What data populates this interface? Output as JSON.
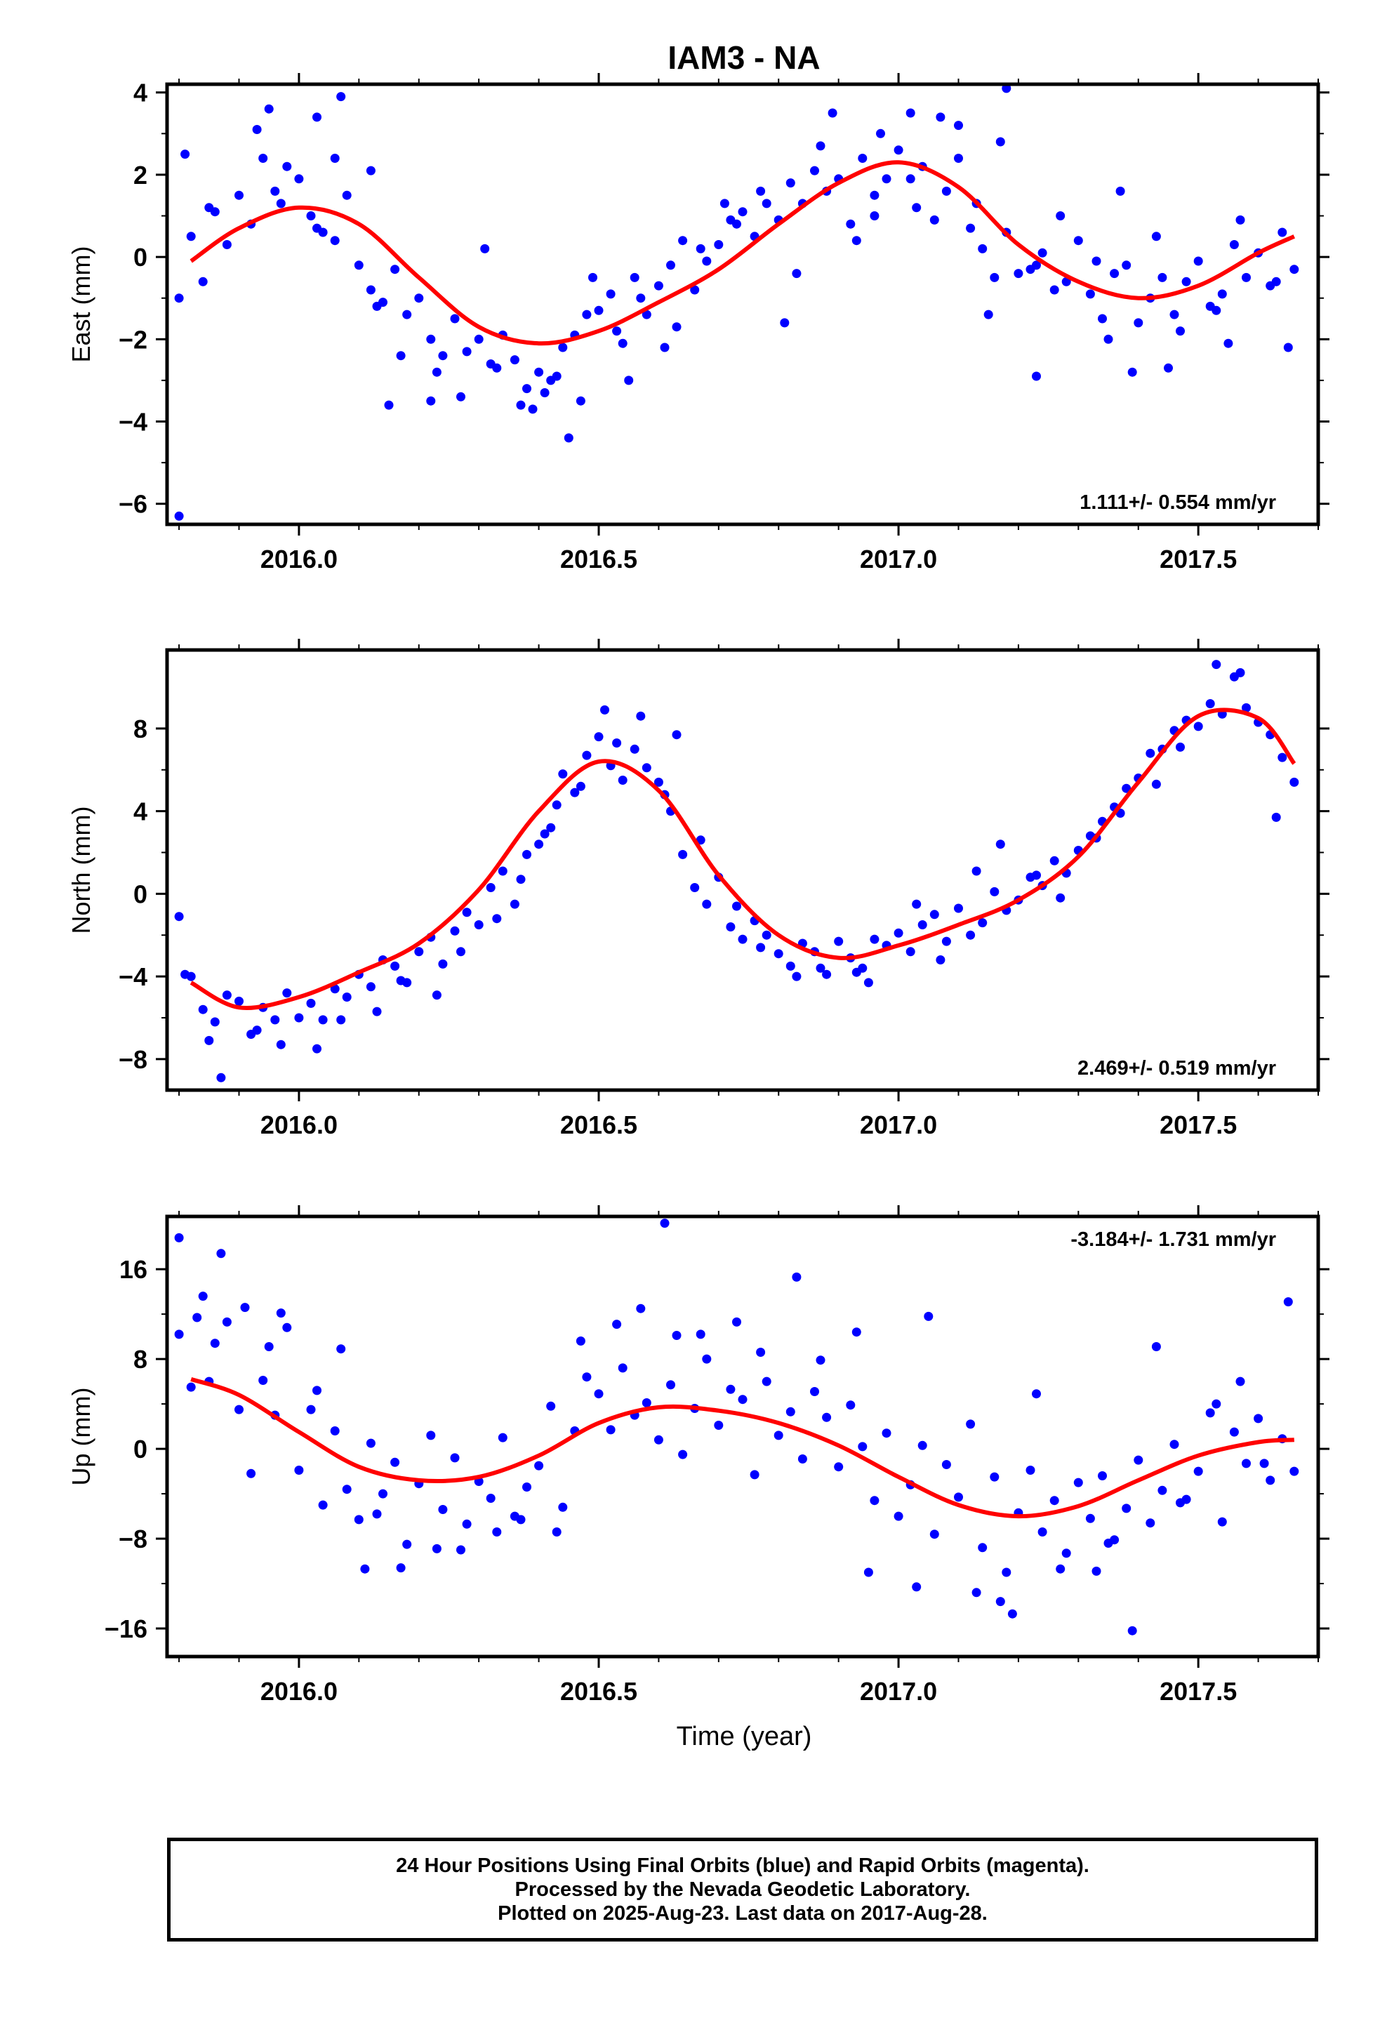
{
  "title": "IAM3 - NA",
  "xlabel": "Time (year)",
  "footer": {
    "line1": "24 Hour Positions Using Final Orbits (blue) and Rapid Orbits (magenta).",
    "line2": "Processed by the Nevada Geodetic Laboratory.",
    "line3": "Plotted on 2025-Aug-23. Last data on 2017-Aug-28."
  },
  "colors": {
    "points": "#0000ff",
    "fit": "#ff0000",
    "frame": "#000000"
  },
  "chart_data": [
    {
      "type": "scatter",
      "ylabel": "East (mm)",
      "rate": "1.111+/- 0.554 mm/yr",
      "xlim": [
        2015.78,
        2017.7
      ],
      "ylim": [
        -6.5,
        4.2
      ],
      "xticks": [
        2016.0,
        2016.5,
        2017.0,
        2017.5
      ],
      "xtick_labels": [
        "2016.0",
        "2016.5",
        "2017.0",
        "2017.5"
      ],
      "yticks": [
        4,
        2,
        0,
        -2,
        -4,
        -6
      ],
      "ytick_labels": [
        "4",
        "2",
        "0",
        "−2",
        "−4",
        "−6"
      ],
      "fit": {
        "x": [
          2015.82,
          2015.9,
          2016.0,
          2016.1,
          2016.2,
          2016.3,
          2016.4,
          2016.5,
          2016.6,
          2016.7,
          2016.8,
          2016.9,
          2017.0,
          2017.1,
          2017.2,
          2017.3,
          2017.4,
          2017.5,
          2017.6,
          2017.66
        ],
        "y": [
          -0.1,
          0.7,
          1.2,
          0.8,
          -0.5,
          -1.7,
          -2.1,
          -1.8,
          -1.1,
          -0.3,
          0.8,
          1.8,
          2.3,
          1.7,
          0.3,
          -0.6,
          -1.0,
          -0.7,
          0.1,
          0.5
        ]
      },
      "points": {
        "x": [
          2015.8,
          2015.82,
          2015.84,
          2015.86,
          2015.88,
          2015.9,
          2015.92,
          2015.94,
          2015.96,
          2015.98,
          2016.0,
          2016.02,
          2016.04,
          2016.06,
          2016.08,
          2016.1,
          2016.12,
          2016.14,
          2016.16,
          2016.18,
          2016.2,
          2016.22,
          2016.24,
          2016.26,
          2016.28,
          2016.3,
          2016.32,
          2016.34,
          2016.36,
          2016.38,
          2016.4,
          2016.42,
          2016.44,
          2016.46,
          2016.48,
          2016.5,
          2016.52,
          2016.54,
          2016.56,
          2016.58,
          2016.6,
          2016.62,
          2016.64,
          2016.66,
          2016.68,
          2016.7,
          2016.72,
          2016.74,
          2016.76,
          2016.78,
          2016.8,
          2016.82,
          2016.84,
          2016.86,
          2016.88,
          2016.9,
          2016.92,
          2016.94,
          2016.96,
          2016.98,
          2017.0,
          2017.02,
          2017.04,
          2017.06,
          2017.08,
          2017.1,
          2017.12,
          2017.14,
          2017.16,
          2017.18,
          2017.2,
          2017.22,
          2017.24,
          2017.26,
          2017.28,
          2017.3,
          2017.32,
          2017.34,
          2017.36,
          2017.38,
          2017.4,
          2017.42,
          2017.44,
          2017.46,
          2017.48,
          2017.5,
          2017.52,
          2017.54,
          2017.56,
          2017.58,
          2017.6,
          2017.62,
          2017.64,
          2017.66,
          2015.81,
          2015.85,
          2015.93,
          2015.97,
          2016.03,
          2016.07,
          2016.13,
          2016.17,
          2016.23,
          2016.27,
          2016.33,
          2016.37,
          2016.41,
          2016.43,
          2016.47,
          2016.53,
          2016.57,
          2016.63,
          2016.67,
          2016.73,
          2016.77,
          2016.83,
          2016.87,
          2016.93,
          2016.97,
          2017.03,
          2017.07,
          2017.13,
          2017.17,
          2017.23,
          2017.27,
          2017.33,
          2017.37,
          2017.43,
          2017.47,
          2017.53,
          2017.57,
          2017.63,
          2015.8,
          2015.95,
          2016.03,
          2016.06,
          2016.12,
          2016.15,
          2016.22,
          2016.31,
          2016.39,
          2016.45,
          2016.49,
          2016.55,
          2016.61,
          2016.71,
          2016.81,
          2016.89,
          2016.96,
          2017.02,
          2017.1,
          2017.15,
          2017.18,
          2017.23,
          2017.35,
          2017.39,
          2017.45,
          2017.55,
          2017.65
        ],
        "y": [
          -1.0,
          0.5,
          -0.6,
          1.1,
          0.3,
          1.5,
          0.8,
          2.4,
          1.6,
          2.2,
          1.9,
          1.0,
          0.6,
          2.4,
          1.5,
          -0.2,
          -0.8,
          -1.1,
          -0.3,
          -1.4,
          -1.0,
          -2.0,
          -2.4,
          -1.5,
          -2.3,
          -2.0,
          -2.6,
          -1.9,
          -2.5,
          -3.2,
          -2.8,
          -3.0,
          -2.2,
          -1.9,
          -1.4,
          -1.3,
          -0.9,
          -2.1,
          -0.5,
          -1.4,
          -0.7,
          -0.2,
          0.4,
          -0.8,
          -0.1,
          0.3,
          0.9,
          1.1,
          0.5,
          1.3,
          0.9,
          1.8,
          1.3,
          2.1,
          1.6,
          1.9,
          0.8,
          2.4,
          1.5,
          1.9,
          2.6,
          1.9,
          2.2,
          0.9,
          1.6,
          2.4,
          0.7,
          0.2,
          -0.5,
          0.6,
          -0.4,
          -0.3,
          0.1,
          -0.8,
          -0.6,
          0.4,
          -0.9,
          -1.5,
          -0.4,
          -0.2,
          -1.6,
          -1.0,
          -0.5,
          -1.4,
          -0.6,
          -0.1,
          -1.2,
          -0.9,
          0.3,
          -0.5,
          0.1,
          -0.7,
          0.6,
          -0.3,
          2.5,
          1.2,
          3.1,
          1.3,
          0.7,
          3.9,
          -1.2,
          -2.4,
          -2.8,
          -3.4,
          -2.7,
          -3.6,
          -3.3,
          -2.9,
          -3.5,
          -1.8,
          -1.0,
          -1.7,
          0.2,
          0.8,
          1.6,
          -0.4,
          2.7,
          0.4,
          3.0,
          1.2,
          3.4,
          1.3,
          2.8,
          -0.2,
          1.0,
          -0.1,
          1.6,
          0.5,
          -1.8,
          -1.3,
          0.9,
          -0.6,
          -6.3,
          3.6,
          3.4,
          0.4,
          2.1,
          -3.6,
          -3.5,
          0.2,
          -3.7,
          -4.4,
          -0.5,
          -3.0,
          -2.2,
          1.3,
          -1.6,
          3.5,
          1.0,
          3.5,
          3.2,
          -1.4,
          4.1,
          -2.9,
          -2.0,
          -2.8,
          -2.7,
          -2.1,
          -2.2
        ]
      }
    },
    {
      "type": "scatter",
      "ylabel": "North (mm)",
      "rate": "2.469+/- 0.519 mm/yr",
      "xlim": [
        2015.78,
        2017.7
      ],
      "ylim": [
        -9.5,
        11.8
      ],
      "xticks": [
        2016.0,
        2016.5,
        2017.0,
        2017.5
      ],
      "xtick_labels": [
        "2016.0",
        "2016.5",
        "2017.0",
        "2017.5"
      ],
      "yticks": [
        8,
        4,
        0,
        -4,
        -8
      ],
      "ytick_labels": [
        "8",
        "4",
        "0",
        "−4",
        "−8"
      ],
      "fit": {
        "x": [
          2015.82,
          2015.9,
          2016.0,
          2016.1,
          2016.2,
          2016.3,
          2016.4,
          2016.5,
          2016.6,
          2016.7,
          2016.8,
          2016.9,
          2017.0,
          2017.1,
          2017.2,
          2017.3,
          2017.4,
          2017.5,
          2017.6,
          2017.66
        ],
        "y": [
          -4.3,
          -5.5,
          -5.0,
          -3.8,
          -2.4,
          0.2,
          4.0,
          6.4,
          5.0,
          0.9,
          -2.0,
          -3.1,
          -2.5,
          -1.5,
          -0.3,
          1.8,
          5.4,
          8.6,
          8.5,
          6.3
        ]
      },
      "points": {
        "x": [
          2015.8,
          2015.82,
          2015.84,
          2015.86,
          2015.88,
          2015.9,
          2015.92,
          2015.94,
          2015.96,
          2015.98,
          2016.0,
          2016.02,
          2016.04,
          2016.06,
          2016.08,
          2016.1,
          2016.12,
          2016.14,
          2016.16,
          2016.18,
          2016.2,
          2016.22,
          2016.24,
          2016.26,
          2016.28,
          2016.3,
          2016.32,
          2016.34,
          2016.36,
          2016.38,
          2016.4,
          2016.42,
          2016.44,
          2016.46,
          2016.48,
          2016.5,
          2016.52,
          2016.54,
          2016.56,
          2016.58,
          2016.6,
          2016.62,
          2016.64,
          2016.66,
          2016.68,
          2016.7,
          2016.72,
          2016.74,
          2016.76,
          2016.78,
          2016.8,
          2016.82,
          2016.84,
          2016.86,
          2016.88,
          2016.9,
          2016.92,
          2016.94,
          2016.96,
          2016.98,
          2017.0,
          2017.02,
          2017.04,
          2017.06,
          2017.08,
          2017.1,
          2017.12,
          2017.14,
          2017.16,
          2017.18,
          2017.2,
          2017.22,
          2017.24,
          2017.26,
          2017.28,
          2017.3,
          2017.32,
          2017.34,
          2017.36,
          2017.38,
          2017.4,
          2017.42,
          2017.44,
          2017.46,
          2017.48,
          2017.5,
          2017.52,
          2017.54,
          2017.56,
          2017.58,
          2017.6,
          2017.62,
          2017.64,
          2017.66,
          2015.81,
          2015.85,
          2015.87,
          2015.93,
          2015.97,
          2016.03,
          2016.07,
          2016.13,
          2016.17,
          2016.23,
          2016.27,
          2016.33,
          2016.37,
          2016.41,
          2016.43,
          2016.47,
          2016.51,
          2016.53,
          2016.57,
          2016.61,
          2016.63,
          2016.67,
          2016.73,
          2016.77,
          2016.83,
          2016.87,
          2016.93,
          2016.95,
          2017.03,
          2017.07,
          2017.13,
          2017.17,
          2017.23,
          2017.27,
          2017.33,
          2017.37,
          2017.43,
          2017.47,
          2017.53,
          2017.57,
          2017.63
        ],
        "y": [
          -1.1,
          -4.0,
          -5.6,
          -6.2,
          -4.9,
          -5.2,
          -6.8,
          -5.5,
          -6.1,
          -4.8,
          -6.0,
          -5.3,
          -6.1,
          -4.6,
          -5.0,
          -3.9,
          -4.5,
          -3.2,
          -3.5,
          -4.3,
          -2.8,
          -2.1,
          -3.4,
          -1.8,
          -0.9,
          -1.5,
          0.3,
          1.1,
          -0.5,
          1.9,
          2.4,
          3.2,
          5.8,
          4.9,
          6.7,
          7.6,
          6.2,
          5.5,
          7.0,
          6.1,
          5.4,
          4.0,
          1.9,
          0.3,
          -0.5,
          0.8,
          -1.6,
          -2.2,
          -1.3,
          -2.0,
          -2.9,
          -3.5,
          -2.4,
          -2.8,
          -3.9,
          -2.3,
          -3.1,
          -3.6,
          -2.2,
          -2.5,
          -1.9,
          -2.8,
          -1.5,
          -1.0,
          -2.3,
          -0.7,
          -2.0,
          -1.4,
          0.1,
          -0.8,
          -0.3,
          0.8,
          0.4,
          1.6,
          1.0,
          2.1,
          2.8,
          3.5,
          4.2,
          5.1,
          5.6,
          6.8,
          7.0,
          7.9,
          8.4,
          8.1,
          9.2,
          8.7,
          10.5,
          9.0,
          8.3,
          7.7,
          6.6,
          5.4,
          -3.9,
          -7.1,
          -8.9,
          -6.6,
          -7.3,
          -7.5,
          -6.1,
          -5.7,
          -4.2,
          -4.9,
          -2.8,
          -1.2,
          0.7,
          2.9,
          4.3,
          5.2,
          8.9,
          7.3,
          8.6,
          4.8,
          7.7,
          2.6,
          -0.6,
          -2.6,
          -4.0,
          -3.6,
          -3.8,
          -4.3,
          -0.5,
          -3.2,
          1.1,
          2.4,
          0.9,
          -0.2,
          2.7,
          3.9,
          5.3,
          7.1,
          11.1,
          10.7,
          3.7
        ]
      }
    },
    {
      "type": "scatter",
      "ylabel": "Up (mm)",
      "rate": "-3.184+/- 1.731 mm/yr",
      "xlim": [
        2015.78,
        2017.7
      ],
      "ylim": [
        -18.5,
        20.7
      ],
      "xticks": [
        2016.0,
        2016.5,
        2017.0,
        2017.5
      ],
      "xtick_labels": [
        "2016.0",
        "2016.5",
        "2017.0",
        "2017.5"
      ],
      "yticks": [
        16,
        8,
        0,
        -8,
        -16
      ],
      "ytick_labels": [
        "16",
        "8",
        "0",
        "−8",
        "−16"
      ],
      "fit": {
        "x": [
          2015.82,
          2015.9,
          2016.0,
          2016.1,
          2016.2,
          2016.3,
          2016.4,
          2016.5,
          2016.6,
          2016.7,
          2016.8,
          2016.9,
          2017.0,
          2017.1,
          2017.2,
          2017.3,
          2017.4,
          2017.5,
          2017.6,
          2017.66
        ],
        "y": [
          6.2,
          4.8,
          1.5,
          -1.6,
          -2.8,
          -2.5,
          -0.6,
          2.3,
          3.7,
          3.4,
          2.3,
          0.3,
          -2.5,
          -5.0,
          -6.0,
          -5.1,
          -2.8,
          -0.6,
          0.6,
          0.8
        ]
      },
      "points": {
        "x": [
          2015.8,
          2015.82,
          2015.84,
          2015.86,
          2015.88,
          2015.9,
          2015.92,
          2015.94,
          2015.96,
          2015.98,
          2016.0,
          2016.02,
          2016.04,
          2016.06,
          2016.08,
          2016.1,
          2016.12,
          2016.14,
          2016.16,
          2016.18,
          2016.2,
          2016.22,
          2016.24,
          2016.26,
          2016.28,
          2016.3,
          2016.32,
          2016.34,
          2016.36,
          2016.38,
          2016.4,
          2016.42,
          2016.44,
          2016.46,
          2016.48,
          2016.5,
          2016.52,
          2016.54,
          2016.56,
          2016.58,
          2016.6,
          2016.62,
          2016.64,
          2016.66,
          2016.68,
          2016.7,
          2016.72,
          2016.74,
          2016.76,
          2016.78,
          2016.8,
          2016.82,
          2016.84,
          2016.86,
          2016.88,
          2016.9,
          2016.92,
          2016.94,
          2016.96,
          2016.98,
          2017.0,
          2017.02,
          2017.04,
          2017.06,
          2017.08,
          2017.1,
          2017.12,
          2017.14,
          2017.16,
          2017.18,
          2017.2,
          2017.22,
          2017.24,
          2017.26,
          2017.28,
          2017.3,
          2017.32,
          2017.34,
          2017.36,
          2017.38,
          2017.4,
          2017.42,
          2017.44,
          2017.46,
          2017.48,
          2017.5,
          2017.52,
          2017.54,
          2017.56,
          2017.58,
          2017.6,
          2017.62,
          2017.64,
          2017.66,
          2015.8,
          2015.83,
          2015.85,
          2015.87,
          2015.91,
          2015.95,
          2015.97,
          2016.03,
          2016.07,
          2016.11,
          2016.13,
          2016.17,
          2016.23,
          2016.27,
          2016.33,
          2016.37,
          2016.43,
          2016.47,
          2016.53,
          2016.57,
          2016.61,
          2016.63,
          2016.67,
          2016.73,
          2016.77,
          2016.83,
          2016.87,
          2016.93,
          2016.95,
          2017.03,
          2017.05,
          2017.13,
          2017.17,
          2017.19,
          2017.23,
          2017.27,
          2017.33,
          2017.35,
          2017.39,
          2017.43,
          2017.47,
          2017.53,
          2017.57,
          2017.61,
          2017.65
        ],
        "y": [
          10.2,
          5.5,
          13.6,
          9.4,
          11.3,
          3.5,
          -2.2,
          6.1,
          3.0,
          10.8,
          -1.9,
          3.5,
          -5.0,
          1.6,
          -3.6,
          -6.3,
          0.5,
          -4.0,
          -1.2,
          -8.5,
          -3.1,
          1.2,
          -5.4,
          -0.8,
          -6.7,
          -2.9,
          -4.4,
          1.0,
          -6.0,
          -3.4,
          -1.5,
          3.8,
          -5.2,
          1.6,
          6.4,
          4.9,
          1.7,
          7.2,
          3.0,
          4.1,
          0.8,
          5.7,
          -0.5,
          3.6,
          8.0,
          2.1,
          5.3,
          4.4,
          -2.3,
          6.0,
          1.2,
          3.3,
          -0.9,
          5.1,
          2.8,
          -1.6,
          3.9,
          0.2,
          -4.6,
          1.4,
          -6.0,
          -3.2,
          0.3,
          -7.6,
          -1.4,
          -4.3,
          2.2,
          -8.8,
          -2.5,
          -11.0,
          -5.7,
          -1.9,
          -7.4,
          -4.6,
          -9.3,
          -3.0,
          -6.2,
          -2.4,
          -8.1,
          -5.3,
          -1.0,
          -6.6,
          -3.7,
          0.4,
          -4.5,
          -2.0,
          3.2,
          -6.5,
          1.5,
          -1.3,
          2.7,
          -2.8,
          0.9,
          -2.0,
          18.8,
          11.7,
          6.0,
          17.4,
          12.6,
          9.1,
          12.1,
          5.2,
          8.9,
          -10.7,
          -5.8,
          -10.6,
          -8.9,
          -9.0,
          -7.4,
          -6.3,
          -7.4,
          9.6,
          11.1,
          12.5,
          20.1,
          10.1,
          10.2,
          11.3,
          8.6,
          15.3,
          7.9,
          10.4,
          -11.0,
          -12.3,
          11.8,
          -12.8,
          -13.6,
          -14.7,
          4.9,
          -10.7,
          -10.9,
          -8.4,
          -16.2,
          9.1,
          -4.8,
          4.0,
          6.0,
          -1.3,
          13.1
        ]
      }
    }
  ]
}
